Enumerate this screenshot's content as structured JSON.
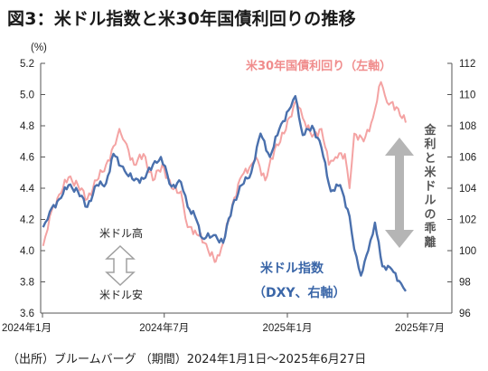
{
  "header": {
    "title": "図3：米ドル指数と米30年国債利回りの推移"
  },
  "footer": {
    "source": "（出所）ブルームバーグ （期間）2024年1月1日～2025年6月27日"
  },
  "colors": {
    "yield_line": "#f4a3a3",
    "dxy_line": "#4a70ad",
    "arrow_grey": "#b5b5b5",
    "axis": "#555555"
  },
  "chart_data": {
    "type": "line",
    "title": "図3：米ドル指数と米30年国債利回りの推移",
    "left_axis": {
      "unit_label": "(%)",
      "ylim": [
        3.6,
        5.2
      ],
      "ticks": [
        "3.6",
        "3.8",
        "4.0",
        "4.2",
        "4.4",
        "4.6",
        "4.8",
        "5.0",
        "5.2"
      ]
    },
    "right_axis": {
      "ylim": [
        96,
        112
      ],
      "ticks": [
        "96",
        "98",
        "100",
        "102",
        "104",
        "106",
        "108",
        "110",
        "112"
      ]
    },
    "x_axis": {
      "range": [
        "2024-01-01",
        "2025-06-27"
      ],
      "ticks": [
        "2024年1月",
        "2024年7月",
        "2025年1月",
        "2025年7月"
      ]
    },
    "grid": false,
    "series": [
      {
        "name": "米30年国債利回り（左軸）",
        "axis": "left",
        "x": [
          "2024-01-02",
          "2024-01-12",
          "2024-01-26",
          "2024-02-09",
          "2024-02-23",
          "2024-03-08",
          "2024-03-22",
          "2024-04-05",
          "2024-04-19",
          "2024-04-25",
          "2024-05-03",
          "2024-05-17",
          "2024-05-31",
          "2024-06-14",
          "2024-06-28",
          "2024-07-12",
          "2024-07-26",
          "2024-08-05",
          "2024-08-16",
          "2024-08-30",
          "2024-09-13",
          "2024-09-16",
          "2024-09-27",
          "2024-10-11",
          "2024-10-25",
          "2024-11-08",
          "2024-11-15",
          "2024-11-29",
          "2024-12-13",
          "2024-12-27",
          "2025-01-10",
          "2025-01-14",
          "2025-01-24",
          "2025-02-07",
          "2025-02-21",
          "2025-03-04",
          "2025-03-14",
          "2025-03-28",
          "2025-04-04",
          "2025-04-11",
          "2025-04-25",
          "2025-05-09",
          "2025-05-21",
          "2025-05-30",
          "2025-06-13",
          "2025-06-27"
        ],
        "y": [
          4.03,
          4.22,
          4.36,
          4.47,
          4.42,
          4.33,
          4.45,
          4.55,
          4.68,
          4.78,
          4.7,
          4.55,
          4.62,
          4.45,
          4.55,
          4.4,
          4.38,
          4.15,
          4.13,
          4.05,
          3.95,
          3.93,
          4.05,
          4.3,
          4.48,
          4.55,
          4.6,
          4.45,
          4.65,
          4.75,
          4.92,
          4.96,
          4.85,
          4.73,
          4.78,
          4.55,
          4.6,
          4.62,
          4.4,
          4.75,
          4.7,
          4.85,
          5.08,
          4.95,
          4.92,
          4.82
        ]
      },
      {
        "name": "米ドル指数（DXY、右軸）",
        "axis": "right",
        "x": [
          "2024-01-02",
          "2024-01-12",
          "2024-01-26",
          "2024-02-09",
          "2024-02-23",
          "2024-03-08",
          "2024-03-22",
          "2024-04-05",
          "2024-04-16",
          "2024-05-03",
          "2024-05-17",
          "2024-05-31",
          "2024-06-14",
          "2024-06-26",
          "2024-07-12",
          "2024-07-26",
          "2024-08-05",
          "2024-08-16",
          "2024-08-27",
          "2024-09-13",
          "2024-09-27",
          "2024-10-11",
          "2024-10-25",
          "2024-11-08",
          "2024-11-22",
          "2024-12-06",
          "2024-12-20",
          "2025-01-03",
          "2025-01-13",
          "2025-01-24",
          "2025-02-07",
          "2025-02-21",
          "2025-03-07",
          "2025-03-21",
          "2025-04-04",
          "2025-04-11",
          "2025-04-21",
          "2025-05-02",
          "2025-05-12",
          "2025-05-23",
          "2025-06-06",
          "2025-06-20",
          "2025-06-27"
        ],
        "y": [
          101.5,
          102.5,
          103.3,
          104.2,
          103.8,
          102.8,
          104.2,
          104.3,
          106.2,
          105.1,
          104.5,
          104.6,
          105.5,
          106.0,
          104.1,
          104.4,
          102.8,
          102.2,
          100.8,
          101.0,
          100.5,
          102.9,
          104.2,
          105.0,
          107.5,
          106.0,
          107.8,
          109.0,
          109.9,
          107.4,
          108.0,
          106.6,
          103.8,
          104.2,
          102.2,
          100.1,
          98.4,
          100.0,
          101.8,
          99.0,
          98.8,
          97.9,
          97.4
        ]
      }
    ],
    "annotations": [
      "米30年国債利回り（左軸）",
      "米ドル指数",
      "（DXY、右軸）",
      "米ドル高",
      "米ドル安",
      "金利と米ドルの乖離"
    ]
  },
  "labels": {
    "yield_series": "米30年国債利回り（左軸）",
    "dxy_line1": "米ドル指数",
    "dxy_line2": "（DXY、右軸）",
    "strong": "米ドル高",
    "weak": "米ドル安",
    "divergence": [
      "金",
      "利",
      "と",
      "米",
      "ド",
      "ル",
      "の",
      "乖",
      "離"
    ]
  }
}
